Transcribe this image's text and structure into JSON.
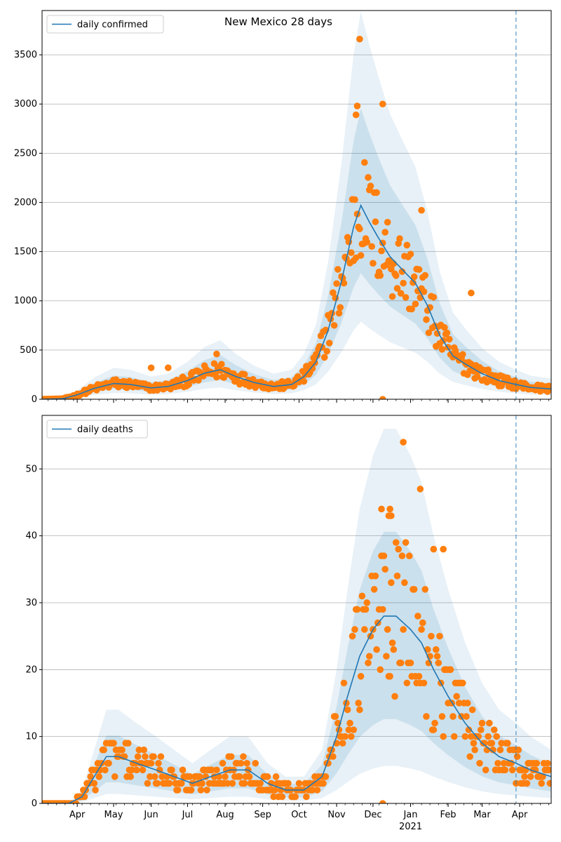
{
  "figure_title": "New Mexico 28 days",
  "colors": {
    "line": "#1f77b4",
    "points": "#ff7f0e",
    "band": "#1f77b4",
    "grid": "#b0b0b0",
    "vline": "#1f77b4"
  },
  "chart_data": [
    {
      "type": "line",
      "legend": "daily confirmed",
      "legend_position": "top-left",
      "grid": "horizontal",
      "xlim": [
        "2020-03-03",
        "2021-04-27"
      ],
      "ylim": [
        0,
        3950
      ],
      "yticks": [
        0,
        500,
        1000,
        1500,
        2000,
        2500,
        3000,
        3500
      ],
      "vline_date": "2021-03-29",
      "line_knots": [
        [
          "2020-03-03",
          0
        ],
        [
          "2020-03-20",
          5
        ],
        [
          "2020-04-01",
          45
        ],
        [
          "2020-04-15",
          110
        ],
        [
          "2020-05-01",
          160
        ],
        [
          "2020-05-15",
          150
        ],
        [
          "2020-06-01",
          115
        ],
        [
          "2020-06-15",
          130
        ],
        [
          "2020-07-01",
          190
        ],
        [
          "2020-07-15",
          265
        ],
        [
          "2020-07-28",
          300
        ],
        [
          "2020-08-10",
          230
        ],
        [
          "2020-08-25",
          170
        ],
        [
          "2020-09-10",
          130
        ],
        [
          "2020-09-25",
          150
        ],
        [
          "2020-10-05",
          230
        ],
        [
          "2020-10-15",
          380
        ],
        [
          "2020-10-25",
          700
        ],
        [
          "2020-11-05",
          1200
        ],
        [
          "2020-11-15",
          1750
        ],
        [
          "2020-11-21",
          1970
        ],
        [
          "2020-11-28",
          1800
        ],
        [
          "2020-12-05",
          1650
        ],
        [
          "2020-12-15",
          1450
        ],
        [
          "2020-12-25",
          1320
        ],
        [
          "2021-01-05",
          1180
        ],
        [
          "2021-01-15",
          950
        ],
        [
          "2021-01-25",
          650
        ],
        [
          "2021-02-05",
          440
        ],
        [
          "2021-02-15",
          360
        ],
        [
          "2021-03-01",
          260
        ],
        [
          "2021-03-15",
          190
        ],
        [
          "2021-03-29",
          150
        ],
        [
          "2021-04-10",
          120
        ],
        [
          "2021-04-27",
          105
        ]
      ],
      "outer_band_factors": [
        0.4,
        2.0
      ],
      "inner_band_factors": [
        0.65,
        1.5
      ],
      "scatter_noise": 0.3,
      "outliers": [
        [
          "2020-11-20",
          3660
        ],
        [
          "2020-11-18",
          2980
        ],
        [
          "2020-11-17",
          2890
        ],
        [
          "2020-12-09",
          3000
        ],
        [
          "2020-12-09",
          0
        ],
        [
          "2020-06-01",
          320
        ],
        [
          "2020-06-15",
          320
        ],
        [
          "2020-07-25",
          460
        ],
        [
          "2021-01-10",
          1920
        ],
        [
          "2021-02-20",
          1080
        ]
      ]
    },
    {
      "type": "line",
      "legend": "daily deaths",
      "legend_position": "top-left",
      "grid": "horizontal",
      "xlim": [
        "2020-03-03",
        "2021-04-27"
      ],
      "ylim": [
        0,
        58
      ],
      "yticks": [
        0,
        10,
        20,
        30,
        40,
        50
      ],
      "vline_date": "2021-03-29",
      "x_ticks": [
        {
          "date": "2020-04-01",
          "label": "Apr"
        },
        {
          "date": "2020-05-01",
          "label": "May"
        },
        {
          "date": "2020-06-01",
          "label": "Jun"
        },
        {
          "date": "2020-07-01",
          "label": "Jul"
        },
        {
          "date": "2020-08-01",
          "label": "Aug"
        },
        {
          "date": "2020-09-01",
          "label": "Sep"
        },
        {
          "date": "2020-10-01",
          "label": "Oct"
        },
        {
          "date": "2020-11-01",
          "label": "Nov"
        },
        {
          "date": "2020-12-01",
          "label": "Dec"
        },
        {
          "date": "2021-01-01",
          "label": "Jan"
        },
        {
          "date": "2021-02-01",
          "label": "Feb"
        },
        {
          "date": "2021-03-01",
          "label": "Mar"
        },
        {
          "date": "2021-04-01",
          "label": "Apr"
        }
      ],
      "year_label": {
        "date": "2021-01-01",
        "label": "2021"
      },
      "line_knots": [
        [
          "2020-03-03",
          0
        ],
        [
          "2020-03-25",
          0
        ],
        [
          "2020-04-05",
          1
        ],
        [
          "2020-04-15",
          4
        ],
        [
          "2020-04-25",
          7
        ],
        [
          "2020-05-05",
          7
        ],
        [
          "2020-05-20",
          6
        ],
        [
          "2020-06-05",
          5
        ],
        [
          "2020-06-20",
          4
        ],
        [
          "2020-07-05",
          3
        ],
        [
          "2020-07-20",
          4
        ],
        [
          "2020-08-05",
          5
        ],
        [
          "2020-08-20",
          5
        ],
        [
          "2020-09-05",
          3
        ],
        [
          "2020-09-20",
          2
        ],
        [
          "2020-10-05",
          2
        ],
        [
          "2020-10-20",
          4
        ],
        [
          "2020-11-01",
          10
        ],
        [
          "2020-11-10",
          16
        ],
        [
          "2020-11-20",
          22
        ],
        [
          "2020-12-01",
          26
        ],
        [
          "2020-12-10",
          28
        ],
        [
          "2020-12-20",
          28
        ],
        [
          "2021-01-01",
          26
        ],
        [
          "2021-01-10",
          24
        ],
        [
          "2021-01-20",
          20
        ],
        [
          "2021-02-01",
          16
        ],
        [
          "2021-02-15",
          12
        ],
        [
          "2021-03-01",
          9
        ],
        [
          "2021-03-15",
          7
        ],
        [
          "2021-03-29",
          6
        ],
        [
          "2021-04-10",
          5
        ],
        [
          "2021-04-27",
          4
        ]
      ],
      "outer_band_factors": [
        0.2,
        2.0
      ],
      "inner_band_factors": [
        0.45,
        1.45
      ],
      "scatter_noise": 0.45,
      "outliers": [
        [
          "2020-12-26",
          54
        ],
        [
          "2021-01-09",
          47
        ],
        [
          "2020-12-08",
          44
        ],
        [
          "2020-12-15",
          44
        ],
        [
          "2020-12-14",
          43
        ],
        [
          "2020-12-16",
          43
        ],
        [
          "2020-12-09",
          0
        ],
        [
          "2021-01-20",
          38
        ],
        [
          "2021-01-28",
          38
        ]
      ]
    }
  ]
}
